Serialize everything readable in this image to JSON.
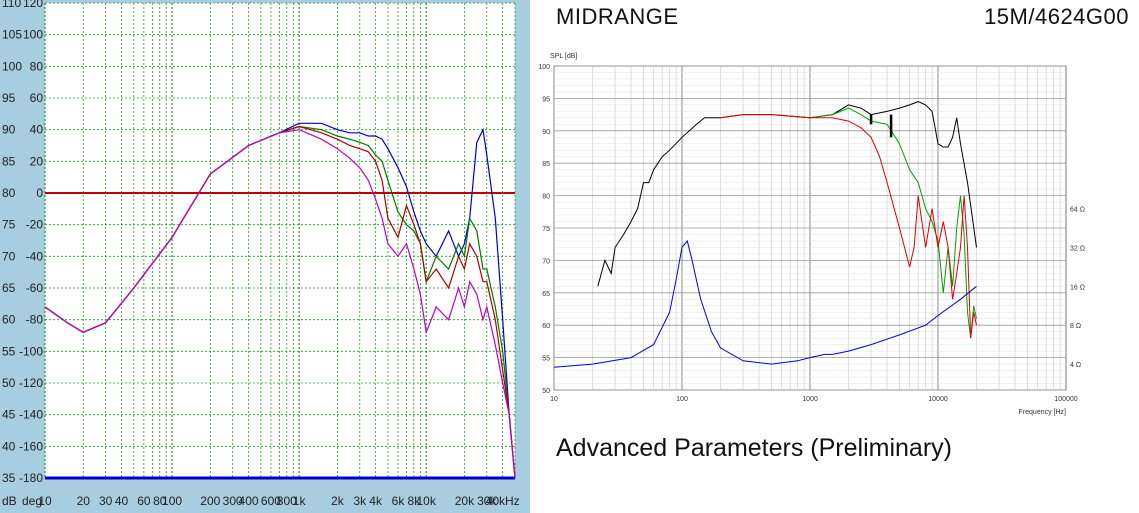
{
  "header": {
    "title": "MIDRANGE",
    "model": "15M/4624G00"
  },
  "caption": "Advanced Parameters (Preliminary)",
  "colors": {
    "green_grid": "#1f9a1f",
    "ref_line": "#c00000",
    "panel_bg": "#a8cce0"
  },
  "chart_data": [
    {
      "type": "line",
      "title": "",
      "xscale": "log",
      "xlim": [
        10,
        50000
      ],
      "ylim": [
        35,
        110
      ],
      "ylim_right": [
        -180,
        120
      ],
      "xticks": [
        {
          "v": 10,
          "t": "10"
        },
        {
          "v": 20,
          "t": "20"
        },
        {
          "v": 30,
          "t": "30"
        },
        {
          "v": 40,
          "t": "40"
        },
        {
          "v": 60,
          "t": "60"
        },
        {
          "v": 80,
          "t": "80"
        },
        {
          "v": 100,
          "t": "100"
        },
        {
          "v": 200,
          "t": "200"
        },
        {
          "v": 300,
          "t": "300"
        },
        {
          "v": 400,
          "t": "400"
        },
        {
          "v": 600,
          "t": "600"
        },
        {
          "v": 800,
          "t": "800"
        },
        {
          "v": 1000,
          "t": "1k"
        },
        {
          "v": 2000,
          "t": "2k"
        },
        {
          "v": 3000,
          "t": "3k"
        },
        {
          "v": 4000,
          "t": "4k"
        },
        {
          "v": 6000,
          "t": "6k"
        },
        {
          "v": 8000,
          "t": "8k"
        },
        {
          "v": 10000,
          "t": "10k"
        },
        {
          "v": 20000,
          "t": "20k"
        },
        {
          "v": 30000,
          "t": "30k"
        },
        {
          "v": 40000,
          "t": "40kHz"
        }
      ],
      "yticks": [
        {
          "v": 110,
          "t": "110",
          "r": "120"
        },
        {
          "v": 105,
          "t": "105",
          "r": "100"
        },
        {
          "v": 100,
          "t": "100",
          "r": "80"
        },
        {
          "v": 95,
          "t": "95",
          "r": "60"
        },
        {
          "v": 90,
          "t": "90",
          "r": "40"
        },
        {
          "v": 85,
          "t": "85",
          "r": "20"
        },
        {
          "v": 80,
          "t": "80",
          "r": "0"
        },
        {
          "v": 75,
          "t": "75",
          "r": "-20"
        },
        {
          "v": 70,
          "t": "70",
          "r": "-40"
        },
        {
          "v": 65,
          "t": "65",
          "r": "-60"
        },
        {
          "v": 60,
          "t": "60",
          "r": "-80"
        },
        {
          "v": 55,
          "t": "55",
          "r": "-100"
        },
        {
          "v": 50,
          "t": "50",
          "r": "-120"
        },
        {
          "v": 45,
          "t": "45",
          "r": "-140"
        },
        {
          "v": 40,
          "t": "40",
          "r": "-160"
        },
        {
          "v": 35,
          "t": "35",
          "r": "-180"
        }
      ],
      "xlabel_left": "dB",
      "xlabel_right": "deg",
      "ref_line_y": 80,
      "series": [
        {
          "color": "#0000cc",
          "x": [
            10,
            15,
            20,
            30,
            50,
            100,
            200,
            400,
            700,
            1000,
            1500,
            2000,
            2500,
            3000,
            3500,
            4000,
            4500,
            5000,
            6000,
            7000,
            8000,
            9000,
            10000,
            12000,
            15000,
            18000,
            20000,
            22000,
            25000,
            28000,
            30000,
            35000,
            40000,
            45000,
            50000
          ],
          "y": [
            62,
            59.5,
            58,
            59.5,
            65,
            73,
            83,
            87.5,
            89.5,
            91,
            91,
            90,
            89.5,
            89.5,
            89,
            89,
            88.5,
            87,
            84,
            81,
            77,
            74,
            72,
            70,
            74,
            70,
            72,
            76,
            88,
            90,
            86,
            76,
            60,
            45,
            35
          ]
        },
        {
          "color": "#007a00",
          "x": [
            10,
            15,
            20,
            30,
            50,
            100,
            200,
            400,
            700,
            1000,
            1500,
            2000,
            2500,
            3000,
            3500,
            4000,
            4500,
            5000,
            6000,
            7000,
            8000,
            9000,
            10000,
            12000,
            15000,
            18000,
            20000,
            22000,
            25000,
            28000,
            30000,
            35000,
            40000,
            45000,
            50000
          ],
          "y": [
            62,
            59.5,
            58,
            59.5,
            65,
            73,
            83,
            87.5,
            89.5,
            90.5,
            90,
            89,
            88.5,
            88,
            87.5,
            86,
            85,
            82,
            77,
            75,
            74,
            72,
            66,
            70,
            68,
            72,
            70,
            76,
            74,
            68,
            68,
            62,
            55,
            45,
            35
          ]
        },
        {
          "color": "#b00000",
          "x": [
            10,
            15,
            20,
            30,
            50,
            100,
            200,
            400,
            700,
            1000,
            1500,
            2000,
            2500,
            3000,
            3500,
            4000,
            4500,
            5000,
            6000,
            7000,
            8000,
            9000,
            10000,
            12000,
            15000,
            18000,
            20000,
            22000,
            25000,
            28000,
            30000,
            35000,
            40000,
            45000,
            50000
          ],
          "y": [
            62,
            59.5,
            58,
            59.5,
            65,
            73,
            83,
            87.5,
            89.5,
            90.5,
            89.5,
            88.5,
            87.5,
            87,
            86.5,
            85,
            82,
            76,
            73,
            78,
            75,
            72,
            66,
            68,
            65,
            70,
            68,
            72,
            70,
            66,
            66,
            60,
            52,
            45,
            35
          ]
        },
        {
          "color": "#c000c0",
          "x": [
            10,
            15,
            20,
            30,
            50,
            100,
            200,
            400,
            700,
            1000,
            1500,
            2000,
            2500,
            3000,
            3500,
            4000,
            4500,
            5000,
            6000,
            7000,
            8000,
            9000,
            10000,
            12000,
            15000,
            18000,
            20000,
            22000,
            25000,
            28000,
            30000,
            35000,
            40000,
            45000,
            50000
          ],
          "y": [
            62,
            59.5,
            58,
            59.5,
            65,
            73,
            83,
            87.5,
            89.5,
            90,
            88.5,
            87,
            85.5,
            84,
            82,
            79,
            76,
            72,
            70,
            72,
            68,
            64,
            58,
            62,
            60,
            65,
            62,
            66,
            64,
            60,
            62,
            56,
            50,
            45,
            35
          ]
        }
      ]
    },
    {
      "type": "line",
      "title": "",
      "ylabel": "SPL [dB]",
      "xlabel": "Frequency [Hz]",
      "xscale": "log",
      "xlim": [
        10,
        100000
      ],
      "ylim": [
        50,
        100
      ],
      "xticks": [
        {
          "v": 10,
          "t": "10"
        },
        {
          "v": 100,
          "t": "100"
        },
        {
          "v": 1000,
          "t": "1000"
        },
        {
          "v": 10000,
          "t": "10000"
        },
        {
          "v": 100000,
          "t": "100000"
        }
      ],
      "yticks": [
        50,
        55,
        60,
        65,
        70,
        75,
        80,
        85,
        90,
        95,
        100
      ],
      "yticks_right": [
        {
          "v": 60,
          "t": "8 Ω"
        },
        {
          "v": 66,
          "t": "16 Ω"
        },
        {
          "v": 72,
          "t": "32 Ω"
        },
        {
          "v": 78,
          "t": "64 Ω"
        },
        {
          "v": 54,
          "t": "4 Ω"
        }
      ],
      "series": [
        {
          "name": "",
          "color": "#000000",
          "x": [
            22,
            25,
            28,
            30,
            35,
            40,
            45,
            50,
            55,
            60,
            70,
            80,
            100,
            130,
            150,
            200,
            300,
            500,
            1000,
            1500,
            2000,
            2500,
            3000,
            4000,
            5000,
            6000,
            7000,
            8000,
            9000,
            10000,
            11000,
            12000,
            13000,
            14000,
            15000,
            17000,
            20000
          ],
          "y": [
            66,
            70,
            68,
            72,
            74,
            76,
            78,
            82,
            82,
            84,
            86,
            87,
            89,
            91,
            92,
            92,
            92.5,
            92.5,
            92,
            92.5,
            94,
            93.5,
            92.5,
            93,
            93.5,
            94,
            94.5,
            94,
            93,
            88,
            87.5,
            87.5,
            89,
            92,
            88,
            82,
            72
          ]
        },
        {
          "name": "",
          "color": "#00a000",
          "x": [
            200,
            300,
            500,
            1000,
            1500,
            2000,
            2500,
            3000,
            4000,
            5000,
            6000,
            7000,
            8000,
            9000,
            10000,
            11000,
            12000,
            13000,
            14000,
            15000,
            16000,
            17000,
            18000,
            19000,
            20000
          ],
          "y": [
            92,
            92.5,
            92.5,
            92,
            92.5,
            93.5,
            92.5,
            91.5,
            91,
            88,
            84,
            82,
            78,
            76,
            73,
            65,
            72,
            66,
            75,
            80,
            74,
            62,
            58,
            63,
            61
          ]
        },
        {
          "name": "",
          "color": "#e00000",
          "x": [
            200,
            300,
            500,
            1000,
            1500,
            2000,
            2500,
            3000,
            3500,
            4000,
            5000,
            6000,
            6500,
            7000,
            8000,
            9000,
            10000,
            11000,
            12000,
            13000,
            14000,
            15000,
            16000,
            17000,
            18000,
            19000,
            20000
          ],
          "y": [
            92,
            92.5,
            92.5,
            92,
            92,
            91.5,
            90.5,
            89,
            86,
            82,
            75,
            69,
            72,
            80,
            72,
            78,
            72,
            76,
            72,
            64,
            68,
            72,
            80,
            72,
            58,
            62,
            60
          ]
        },
        {
          "name": "",
          "color": "#0000dd",
          "x": [
            10,
            20,
            40,
            60,
            80,
            90,
            100,
            110,
            120,
            140,
            170,
            200,
            300,
            500,
            800,
            1000,
            1300,
            1500,
            2000,
            3000,
            5000,
            8000,
            10000,
            15000,
            20000
          ],
          "y": [
            53.5,
            54,
            55,
            57,
            62,
            67,
            72,
            73,
            70,
            64,
            59,
            56.5,
            54.5,
            54,
            54.5,
            55,
            55.5,
            55.5,
            56,
            57,
            58.5,
            60,
            61.5,
            64,
            66
          ]
        }
      ],
      "markers": [
        {
          "x": 3000,
          "y1": 92.5,
          "y2": 91
        },
        {
          "x": 4300,
          "y1": 92.5,
          "y2": 89
        }
      ]
    }
  ]
}
